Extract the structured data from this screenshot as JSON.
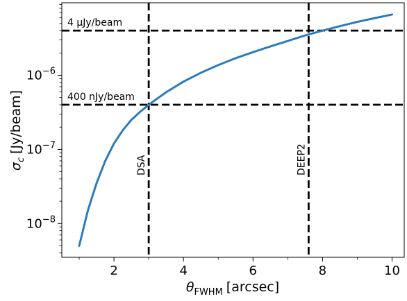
{
  "chart_data": {
    "type": "line",
    "title": "",
    "xlabel": {
      "symbol": "θ",
      "subscript": "FWHM",
      "unit": "[arcsec]"
    },
    "ylabel": {
      "symbol": "σ",
      "subscript": "c",
      "unit": "[Jy/beam]"
    },
    "xlim": [
      0.5,
      10.35
    ],
    "ylim": [
      3.5e-09,
      9.5e-06
    ],
    "yscale": "log",
    "grid": false,
    "x_ticks": [
      {
        "value": 2,
        "label": "2"
      },
      {
        "value": 4,
        "label": "4"
      },
      {
        "value": 6,
        "label": "6"
      },
      {
        "value": 8,
        "label": "8"
      },
      {
        "value": 10,
        "label": "10"
      }
    ],
    "y_ticks": [
      {
        "value": 1e-08,
        "base": "10",
        "exp": "−8"
      },
      {
        "value": 1e-07,
        "base": "10",
        "exp": "−7"
      },
      {
        "value": 1e-06,
        "base": "10",
        "exp": "−6"
      }
    ],
    "series": [
      {
        "color": "#2b7bba",
        "x": [
          1.0,
          1.25,
          1.5,
          1.75,
          2.0,
          2.25,
          2.5,
          2.75,
          3.0,
          3.5,
          4.0,
          4.5,
          5.0,
          5.5,
          6.0,
          6.5,
          7.0,
          7.5,
          8.0,
          8.5,
          9.0,
          9.5,
          10.0
        ],
        "y": [
          5e-09,
          1.5e-08,
          3.5e-08,
          7e-08,
          1.2e-07,
          1.8e-07,
          2.5e-07,
          3.2e-07,
          4e-07,
          5.9e-07,
          8.2e-07,
          1.08e-06,
          1.37e-06,
          1.7e-06,
          2.05e-06,
          2.45e-06,
          2.9e-06,
          3.45e-06,
          4e-06,
          4.6e-06,
          5.25e-06,
          5.9e-06,
          6.6e-06
        ]
      }
    ],
    "hlines": [
      {
        "value": 4e-06,
        "label": "4 μJy/beam"
      },
      {
        "value": 4e-07,
        "label": "400 nJy/beam"
      }
    ],
    "vlines": [
      {
        "value": 3.0,
        "label": "DSA"
      },
      {
        "value": 7.6,
        "label": "DEEP2"
      }
    ]
  }
}
